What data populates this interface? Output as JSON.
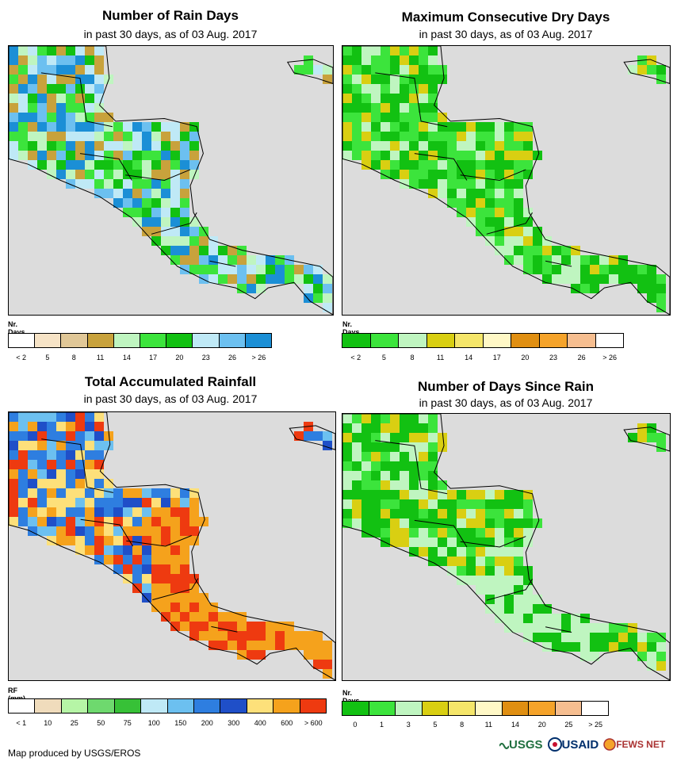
{
  "panels": [
    {
      "title": "Number of Rain Days",
      "subtitle": "in past 30 days, as of 03 Aug. 2017",
      "legend_title": "Nr. Days",
      "legend_colors": [
        "#ffffff",
        "#f6e3c6",
        "#e0c797",
        "#c8a23c",
        "#bff5c0",
        "#3ce43c",
        "#12c112",
        "#bfe9f6",
        "#6cc0f0",
        "#1b8fd6"
      ],
      "legend_labels": [
        "< 2",
        "5",
        "8",
        "11",
        "14",
        "17",
        "20",
        "23",
        "26",
        "> 26"
      ],
      "map_palette": [
        "#3ce43c",
        "#12c112",
        "#bfe9f6",
        "#6cc0f0",
        "#1b8fd6",
        "#c8a23c",
        "#bff5c0"
      ]
    },
    {
      "title": "Maximum Consecutive Dry Days",
      "subtitle": "in past 30 days, as of 03 Aug. 2017",
      "legend_title": "Nr. Days",
      "legend_colors": [
        "#12c112",
        "#3ce43c",
        "#bff5c0",
        "#d9cf12",
        "#f5e66a",
        "#fff8c6",
        "#e08f12",
        "#f5a32a",
        "#f6be90",
        "#ffffff"
      ],
      "legend_labels": [
        "< 2",
        "5",
        "8",
        "11",
        "14",
        "17",
        "20",
        "23",
        "26",
        "> 26"
      ],
      "map_palette": [
        "#12c112",
        "#3ce43c",
        "#3ce43c",
        "#12c112",
        "#bff5c0",
        "#d9cf12"
      ]
    },
    {
      "title": "Total Accumulated Rainfall",
      "subtitle": "in past 30 days, as of 03 Aug. 2017",
      "legend_title": "RF (mm)",
      "legend_colors": [
        "#ffffff",
        "#f0dcbc",
        "#b6f5a6",
        "#6ed96e",
        "#37c137",
        "#bfe9f6",
        "#6cc0f0",
        "#2e7ee0",
        "#1f4fc8",
        "#fde07a",
        "#f5a21c",
        "#ee3a10"
      ],
      "legend_labels": [
        "< 1",
        "10",
        "25",
        "50",
        "75",
        "100",
        "150",
        "200",
        "300",
        "400",
        "600",
        "> 600"
      ],
      "map_palette": [
        "#2e7ee0",
        "#1f4fc8",
        "#6cc0f0",
        "#f5a21c",
        "#ee3a10",
        "#fde07a",
        "#2e7ee0"
      ]
    },
    {
      "title": "Number of Days Since Rain",
      "subtitle": "in past 30 days, as of 03 Aug. 2017",
      "legend_title": "Nr. Days",
      "legend_colors": [
        "#12c112",
        "#3ce43c",
        "#bff5c0",
        "#d9cf12",
        "#f5e66a",
        "#fff8c6",
        "#e08f12",
        "#f5a32a",
        "#f6be90",
        "#ffffff"
      ],
      "legend_labels": [
        "0",
        "1",
        "3",
        "5",
        "8",
        "11",
        "14",
        "20",
        "25",
        "> 25"
      ],
      "map_palette": [
        "#12c112",
        "#12c112",
        "#3ce43c",
        "#bff5c0",
        "#d9cf12"
      ]
    }
  ],
  "credit": "Map produced by USGS/EROS",
  "logos": [
    "USGS",
    "USAID",
    "FEWS NET"
  ]
}
